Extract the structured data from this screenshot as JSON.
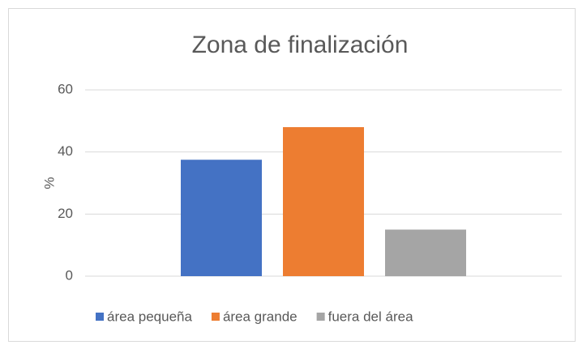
{
  "chart_data": {
    "type": "bar",
    "title": "Zona de finalización",
    "y_label": "%",
    "categories": [
      null
    ],
    "series": [
      {
        "name": "área pequeña",
        "color": "#4472c4",
        "values": [
          37.5
        ]
      },
      {
        "name": "área grande",
        "color": "#ed7d31",
        "values": [
          48
        ]
      },
      {
        "name": "fuera del área",
        "color": "#a5a5a5",
        "values": [
          15
        ]
      }
    ],
    "ylim": [
      0,
      60
    ],
    "yticks": [
      0,
      20,
      40,
      60
    ],
    "grid": true,
    "legend": "bottom"
  }
}
